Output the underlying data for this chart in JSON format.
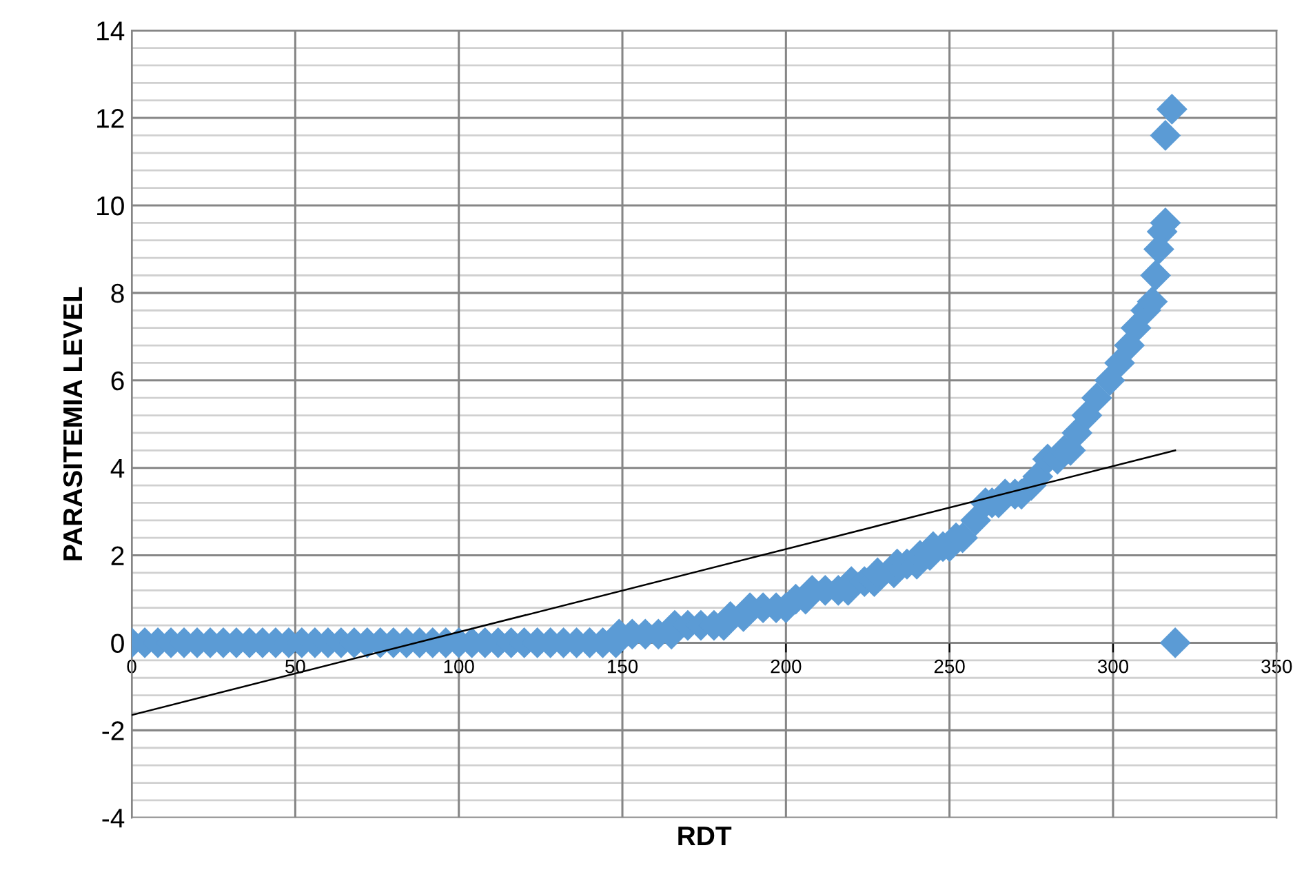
{
  "chart_data": {
    "type": "scatter",
    "xlabel": "RDT",
    "ylabel": "PARASITEMIA LEVEL",
    "xlim": [
      0,
      350
    ],
    "xticks": [
      0,
      50,
      100,
      150,
      200,
      250,
      300,
      350
    ],
    "ylim": [
      -4,
      14
    ],
    "yticks": [
      -4,
      {
        "value": -3.6,
        "label": null
      },
      {
        "value": -3.2,
        "label": null
      },
      {
        "value": -2.8,
        "label": null
      },
      {
        "value": -2.4,
        "label": null
      },
      -2,
      {
        "value": -1.6,
        "label": null
      },
      {
        "value": -1.2,
        "label": null
      },
      {
        "value": -0.8,
        "label": null
      },
      {
        "value": -0.4,
        "label": null
      },
      0,
      {
        "value": 0.4,
        "label": null
      },
      {
        "value": 0.8,
        "label": null
      },
      {
        "value": 1.2,
        "label": null
      },
      {
        "value": 1.6,
        "label": null
      },
      2,
      {
        "value": 2.4,
        "label": null
      },
      {
        "value": 2.8,
        "label": null
      },
      {
        "value": 3.2,
        "label": null
      },
      {
        "value": 3.6,
        "label": null
      },
      4,
      {
        "value": 4.4,
        "label": null
      },
      {
        "value": 4.8,
        "label": null
      },
      {
        "value": 5.2,
        "label": null
      },
      {
        "value": 5.6,
        "label": null
      },
      6,
      {
        "value": 6.4,
        "label": null
      },
      {
        "value": 6.8,
        "label": null
      },
      {
        "value": 7.2,
        "label": null
      },
      {
        "value": 7.6,
        "label": null
      },
      8,
      {
        "value": 8.4,
        "label": null
      },
      {
        "value": 8.8,
        "label": null
      },
      {
        "value": 9.2,
        "label": null
      },
      {
        "value": 9.6,
        "label": null
      },
      10,
      {
        "value": 10.4,
        "label": null
      },
      {
        "value": 10.8,
        "label": null
      },
      {
        "value": 11.2,
        "label": null
      },
      {
        "value": 11.6,
        "label": null
      },
      12,
      {
        "value": 12.4,
        "label": null
      },
      {
        "value": 12.8,
        "label": null
      },
      {
        "value": 13.2,
        "label": null
      },
      {
        "value": 13.6,
        "label": null
      },
      14
    ],
    "grid": true,
    "series": [
      {
        "marker": "diamond",
        "color": "#5b9bd5",
        "x": [
          0,
          4,
          8,
          12,
          16,
          20,
          24,
          28,
          32,
          36,
          40,
          44,
          48,
          52,
          56,
          60,
          64,
          68,
          72,
          76,
          80,
          84,
          88,
          92,
          96,
          100,
          104,
          108,
          112,
          116,
          120,
          124,
          128,
          132,
          136,
          140,
          144,
          148,
          149,
          153,
          157,
          161,
          165,
          166,
          170,
          174,
          178,
          181,
          183,
          187,
          189,
          193,
          197,
          200,
          203,
          206,
          208,
          212,
          216,
          219,
          220,
          224,
          227,
          228,
          233,
          234,
          237,
          240,
          241,
          244,
          245,
          248,
          250,
          252,
          254,
          258,
          261,
          263,
          265,
          267,
          270,
          272,
          275,
          277,
          280,
          283,
          285,
          287,
          289,
          292,
          295,
          299,
          302,
          305,
          307,
          310,
          312,
          313,
          314,
          315,
          316,
          316,
          318,
          319
        ],
        "values": [
          0,
          0,
          0,
          0,
          0,
          0,
          0,
          0,
          0,
          0,
          0,
          0,
          0,
          0,
          0,
          0,
          0,
          0,
          0,
          0,
          0,
          0,
          0,
          0,
          0,
          0,
          0,
          0,
          0,
          0,
          0,
          0,
          0,
          0,
          0,
          0,
          0,
          0,
          0.2,
          0.2,
          0.2,
          0.2,
          0.2,
          0.4,
          0.4,
          0.4,
          0.4,
          0.4,
          0.6,
          0.6,
          0.8,
          0.8,
          0.8,
          0.8,
          1.0,
          1.0,
          1.2,
          1.2,
          1.2,
          1.2,
          1.4,
          1.4,
          1.4,
          1.6,
          1.6,
          1.8,
          1.8,
          1.8,
          2.0,
          2.0,
          2.2,
          2.2,
          2.2,
          2.4,
          2.4,
          2.8,
          3.2,
          3.2,
          3.2,
          3.4,
          3.4,
          3.4,
          3.6,
          3.8,
          4.2,
          4.2,
          4.4,
          4.4,
          4.8,
          5.2,
          5.6,
          6.0,
          6.4,
          6.8,
          7.2,
          7.6,
          7.8,
          8.4,
          9.0,
          9.4,
          9.6,
          11.6,
          12.2,
          0
        ]
      },
      {
        "type": "line",
        "color": "#000000",
        "x": [
          0,
          319
        ],
        "values": [
          -1.65,
          4.4
        ]
      }
    ]
  }
}
